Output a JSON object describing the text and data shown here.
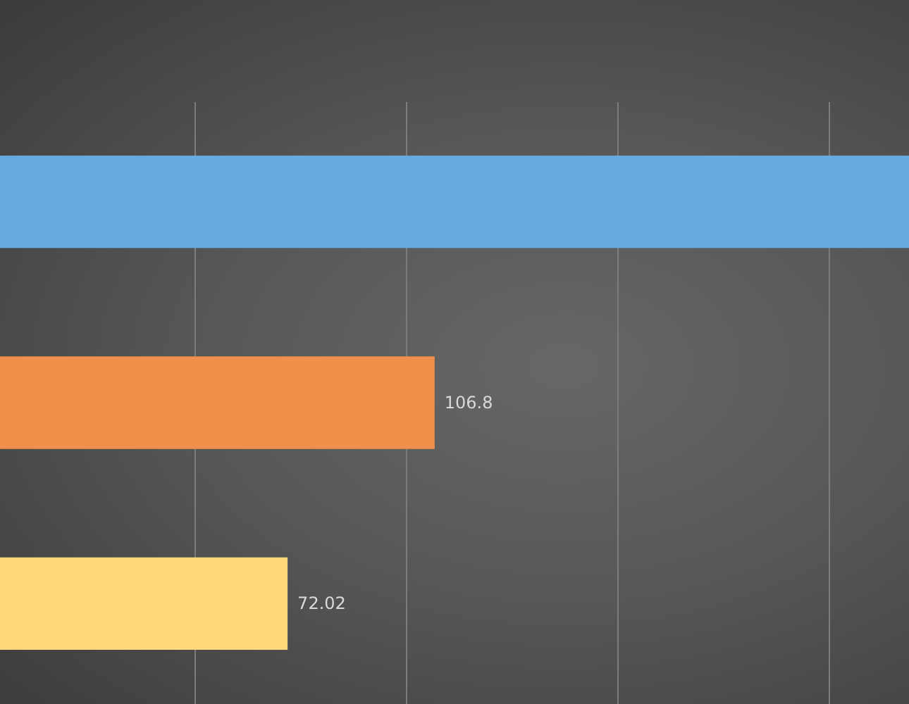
{
  "chart_data": {
    "type": "bar",
    "orientation": "horizontal",
    "categories": [
      null,
      null,
      null
    ],
    "values": [
      219,
      106.8,
      72.02
    ],
    "colors": [
      "#66a9df",
      "#f0904a",
      "#ffd97c"
    ],
    "value_labels": [
      null,
      "106.8",
      "72.02"
    ],
    "xticks": [
      {
        "value": 50,
        "label": null
      },
      {
        "value": 100,
        "label": null
      },
      {
        "value": 150,
        "label": null
      },
      {
        "value": 200,
        "label": null
      }
    ],
    "grid": "x"
  }
}
